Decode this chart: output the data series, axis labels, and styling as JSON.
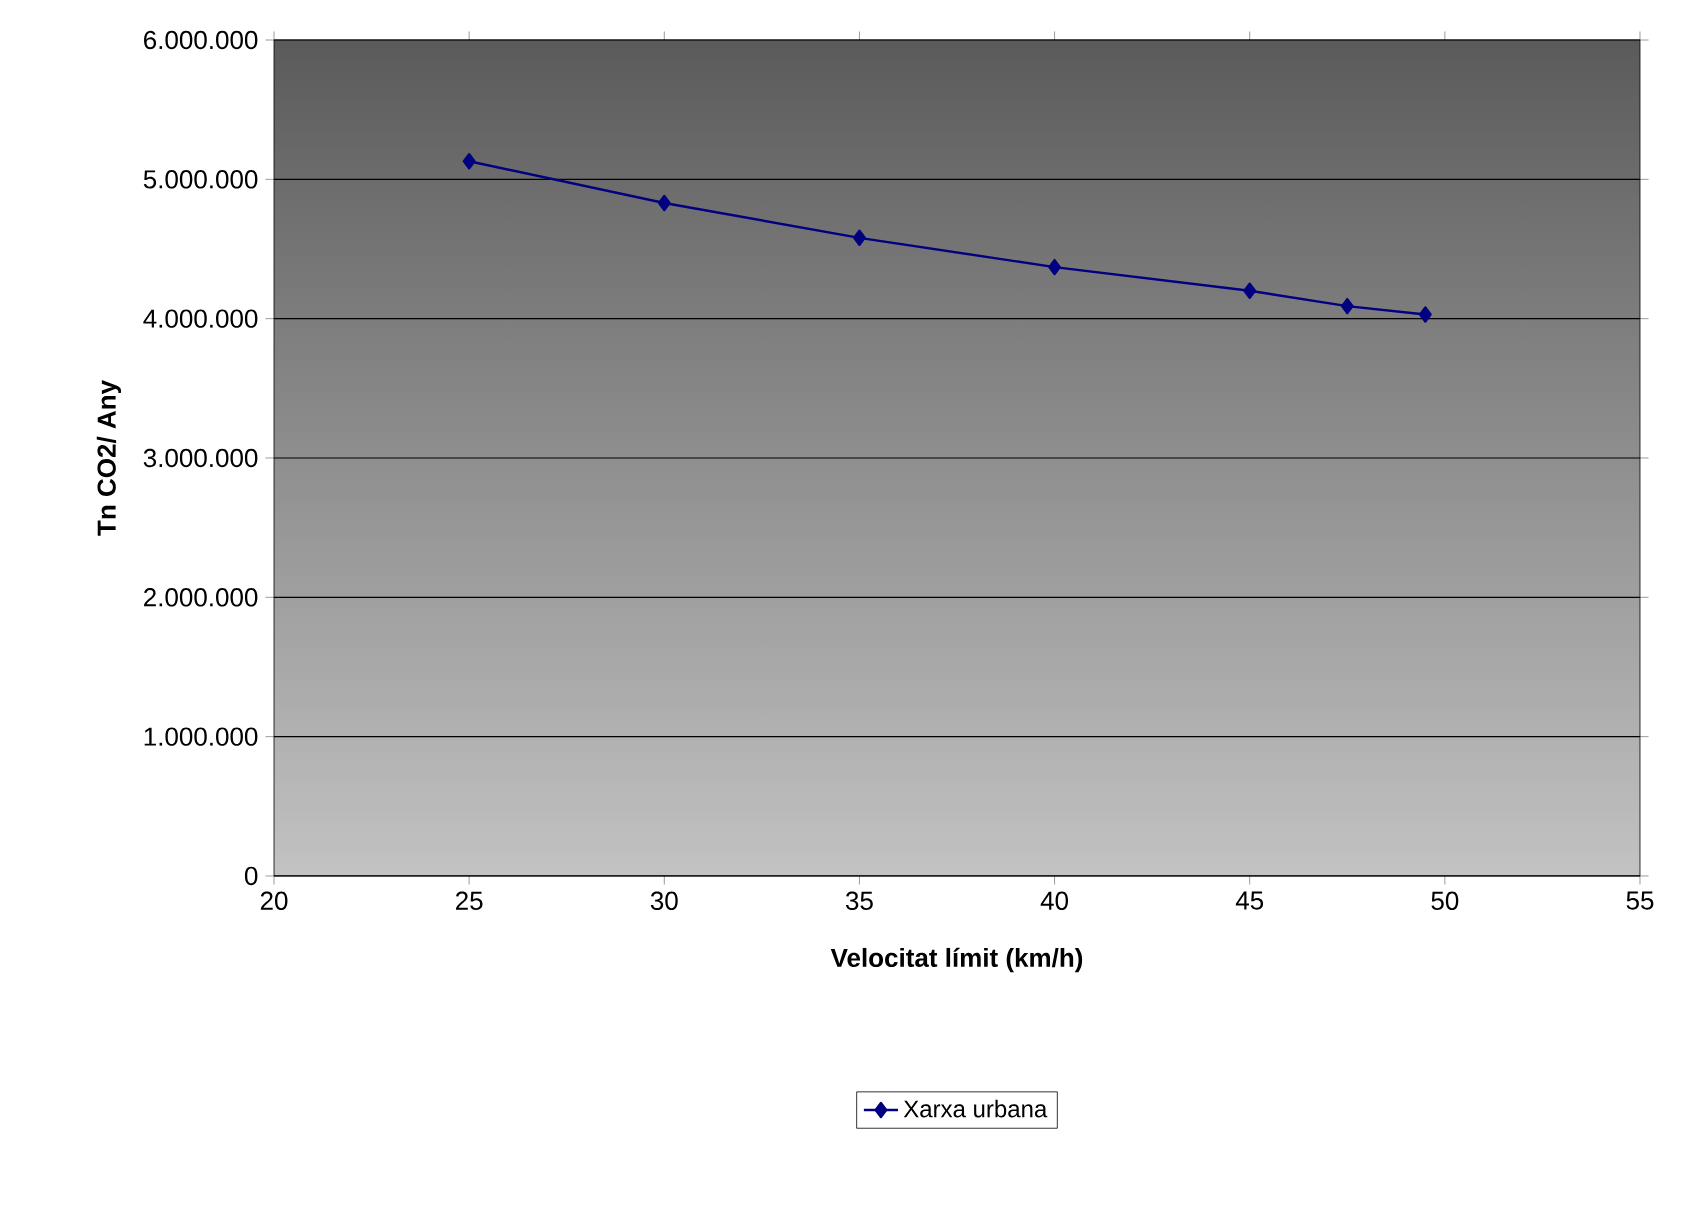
{
  "chart_data": {
    "type": "line",
    "xlabel": "Velocitat límit (km/h)",
    "ylabel": "Tn CO2/ Any",
    "x": [
      25,
      30,
      35,
      40,
      45,
      47.5,
      49.5
    ],
    "series": [
      {
        "name": "Xarxa urbana",
        "color": "#000080",
        "values": [
          5130000,
          4830000,
          4580000,
          4370000,
          4200000,
          4090000,
          4030000
        ]
      }
    ],
    "xlim": [
      20,
      55
    ],
    "xticks": [
      20,
      25,
      30,
      35,
      40,
      45,
      50,
      55
    ],
    "ylim": [
      0,
      6000000
    ],
    "yticks": [
      {
        "value": 0,
        "label": "0"
      },
      {
        "value": 1000000,
        "label": "1.000.000"
      },
      {
        "value": 2000000,
        "label": "2.000.000"
      },
      {
        "value": 3000000,
        "label": "3.000.000"
      },
      {
        "value": 4000000,
        "label": "4.000.000"
      },
      {
        "value": 5000000,
        "label": "5.000.000"
      },
      {
        "value": 6000000,
        "label": "6.000.000"
      }
    ],
    "grid": "y",
    "legend": "bottom",
    "marker": "diamond",
    "line_style": "solid"
  }
}
